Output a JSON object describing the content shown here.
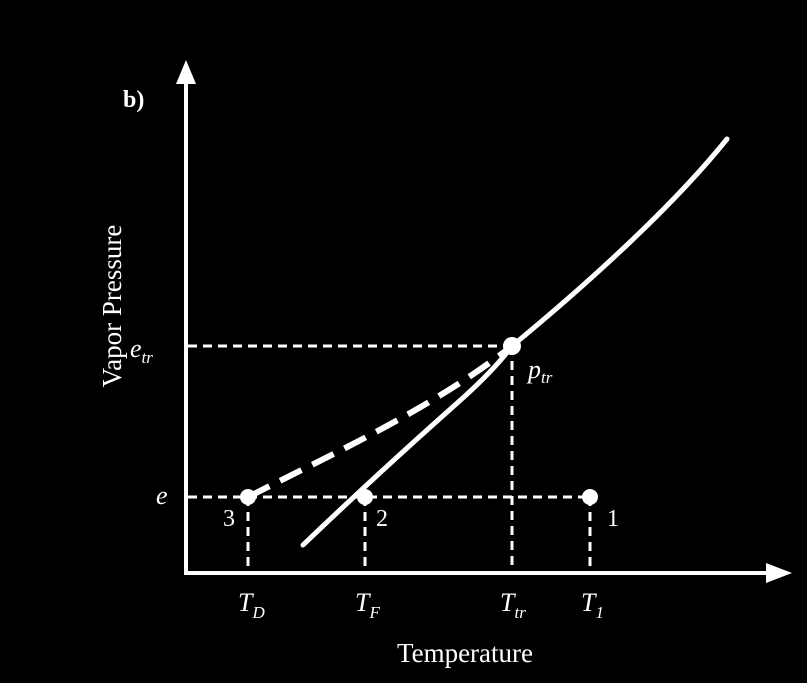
{
  "panel_label": "b)",
  "axes": {
    "x_title": "Temperature",
    "y_title": "Vapor Pressure"
  },
  "y_labels": {
    "e_tr": {
      "main": "e",
      "sub": "tr"
    },
    "e": {
      "main": "e"
    }
  },
  "x_labels": {
    "T_D": {
      "main": "T",
      "sub": "D"
    },
    "T_F": {
      "main": "T",
      "sub": "F"
    },
    "T_tr": {
      "main": "T",
      "sub": "tr"
    },
    "T_1": {
      "main": "T",
      "sub": "1"
    }
  },
  "points": {
    "p_tr": {
      "main": "p",
      "sub": "tr"
    },
    "p1": "1",
    "p2": "2",
    "p3": "3"
  },
  "colors": {
    "background": "#000000",
    "ink": "#ffffff"
  }
}
